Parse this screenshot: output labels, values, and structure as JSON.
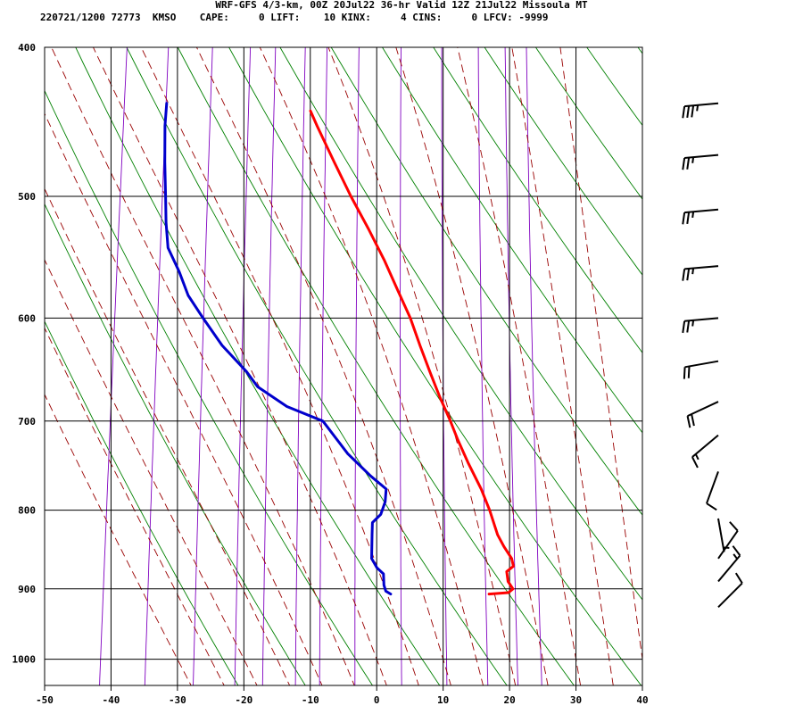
{
  "header": {
    "title": "WRF-GFS 4/3-km, 00Z 20Jul22 36-hr Valid 12Z 21Jul22 Missoula MT",
    "indices": "220721/1200 72773  KMSO    CAPE:     0 LIFT:    10 KINX:     4 CINS:     0 LFCV: -9999"
  },
  "colors": {
    "background": "#ffffff",
    "grid": "#000000",
    "temperature": "#ff0000",
    "dewpoint": "#0000cc",
    "dry_adiabat": "#008000",
    "moist_adiabat": "#990000",
    "mixing_ratio": "#8000c0",
    "wind_barb": "#000000"
  },
  "chart_data": {
    "type": "line",
    "subtype": "skew-T log-P sounding",
    "title": "",
    "xlabel": "",
    "ylabel": "",
    "x_ticks": [
      -50,
      -40,
      -30,
      -20,
      -10,
      0,
      10,
      20,
      30,
      40
    ],
    "y_ticks": [
      400,
      500,
      600,
      700,
      800,
      900,
      1000
    ],
    "xlim": [
      -50,
      40
    ],
    "ylim_hPa": [
      1040,
      400
    ],
    "y_scale": "log",
    "grid": true,
    "series": [
      {
        "color": "#ff0000",
        "points": [
          [
            907,
            15.6
          ],
          [
            905,
            18.5
          ],
          [
            900,
            19.1
          ],
          [
            890,
            18.2
          ],
          [
            877,
            17.8
          ],
          [
            870,
            18.7
          ],
          [
            860,
            18.3
          ],
          [
            845,
            16.9
          ],
          [
            830,
            15.7
          ],
          [
            800,
            14.0
          ],
          [
            775,
            12.3
          ],
          [
            745,
            9.8
          ],
          [
            720,
            7.8
          ],
          [
            700,
            6.3
          ],
          [
            675,
            4.2
          ],
          [
            650,
            2.2
          ],
          [
            625,
            0.2
          ],
          [
            600,
            -1.8
          ],
          [
            575,
            -4.3
          ],
          [
            550,
            -6.9
          ],
          [
            525,
            -9.9
          ],
          [
            500,
            -13.2
          ],
          [
            475,
            -16.4
          ],
          [
            450,
            -19.7
          ],
          [
            440,
            -21.0
          ]
        ]
      },
      {
        "color": "#0000cc",
        "points": [
          [
            907,
            0.8
          ],
          [
            903,
            0.0
          ],
          [
            895,
            -0.4
          ],
          [
            880,
            -0.7
          ],
          [
            872,
            -1.8
          ],
          [
            860,
            -2.8
          ],
          [
            830,
            -3.2
          ],
          [
            815,
            -3.4
          ],
          [
            805,
            -2.3
          ],
          [
            790,
            -1.9
          ],
          [
            775,
            -2.0
          ],
          [
            760,
            -4.6
          ],
          [
            735,
            -8.5
          ],
          [
            700,
            -12.9
          ],
          [
            685,
            -18.6
          ],
          [
            665,
            -23.4
          ],
          [
            650,
            -25.4
          ],
          [
            625,
            -29.6
          ],
          [
            600,
            -33.0
          ],
          [
            580,
            -35.7
          ],
          [
            560,
            -37.5
          ],
          [
            540,
            -39.7
          ],
          [
            520,
            -40.5
          ],
          [
            500,
            -41.1
          ],
          [
            475,
            -41.9
          ],
          [
            450,
            -42.6
          ],
          [
            435,
            -42.8
          ]
        ]
      }
    ],
    "wind_barbs_kt": [
      {
        "p": 435,
        "speed": 35,
        "direction": 265
      },
      {
        "p": 470,
        "speed": 25,
        "direction": 265
      },
      {
        "p": 510,
        "speed": 25,
        "direction": 265
      },
      {
        "p": 555,
        "speed": 25,
        "direction": 265
      },
      {
        "p": 600,
        "speed": 25,
        "direction": 265
      },
      {
        "p": 640,
        "speed": 20,
        "direction": 260
      },
      {
        "p": 680,
        "speed": 20,
        "direction": 245
      },
      {
        "p": 715,
        "speed": 15,
        "direction": 230
      },
      {
        "p": 755,
        "speed": 10,
        "direction": 200
      },
      {
        "p": 810,
        "speed": 5,
        "direction": 170
      },
      {
        "p": 860,
        "speed": 10,
        "direction": 35
      },
      {
        "p": 890,
        "speed": 15,
        "direction": 40
      },
      {
        "p": 925,
        "speed": 10,
        "direction": 45
      }
    ]
  }
}
